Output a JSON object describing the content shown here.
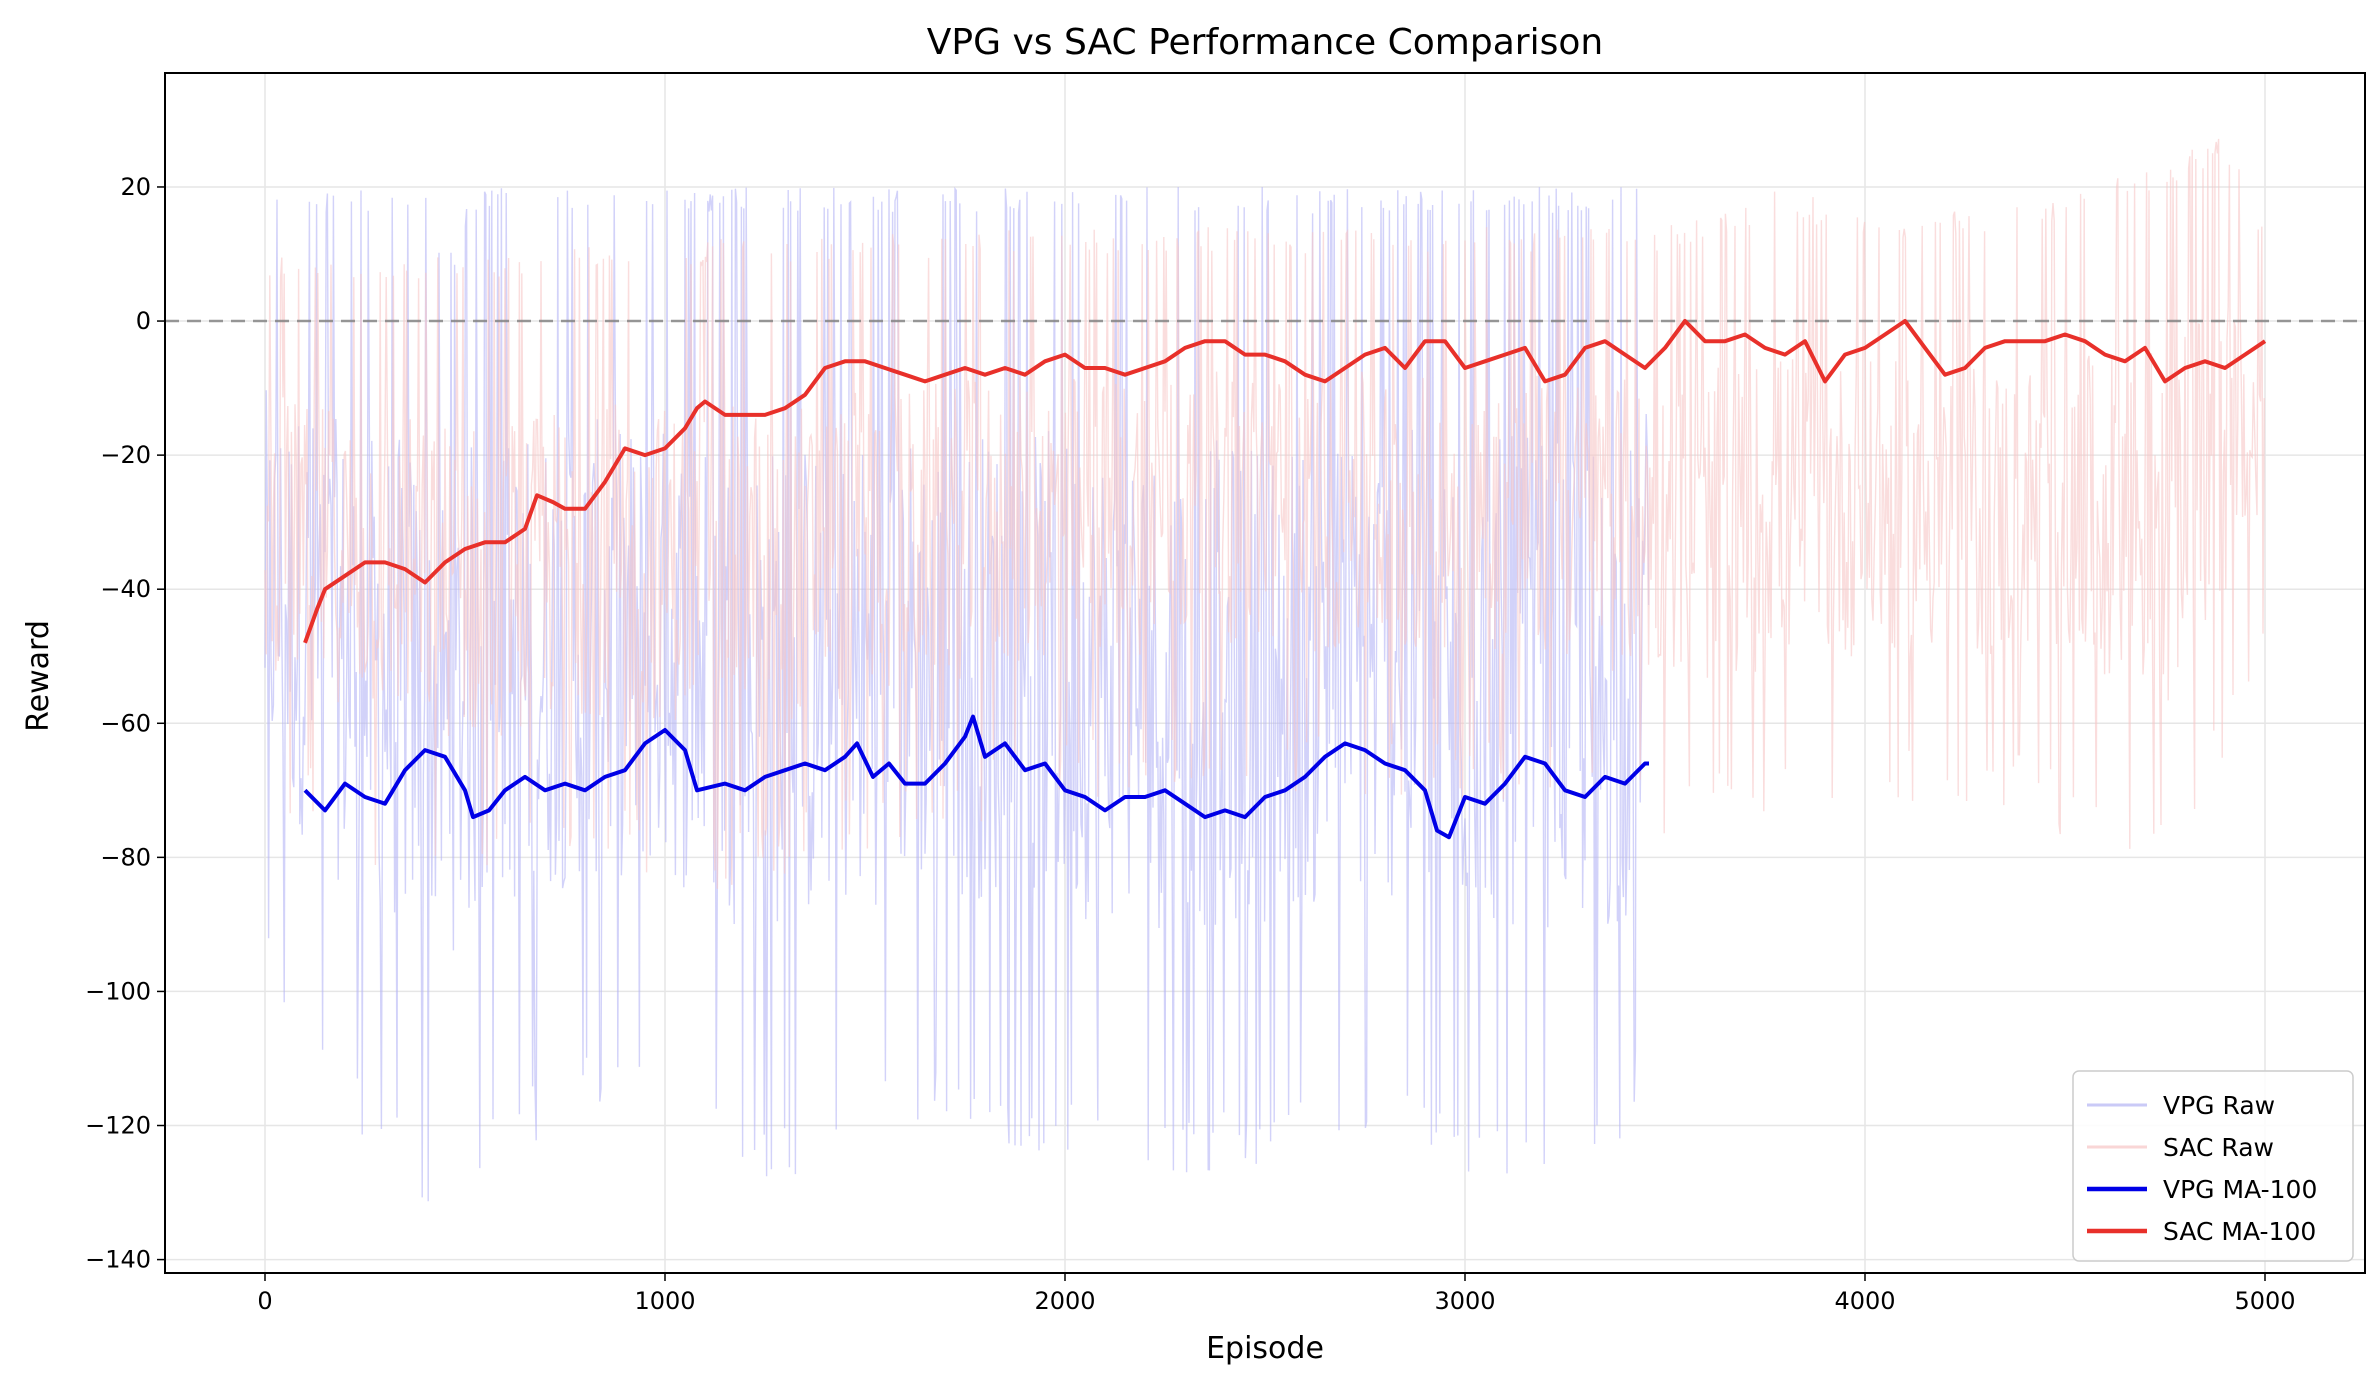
{
  "chart_data": {
    "type": "line",
    "title": "VPG vs SAC Performance Comparison",
    "xlabel": "Episode",
    "ylabel": "Reward",
    "xlim": [
      -250,
      5250
    ],
    "ylim": [
      -142,
      37
    ],
    "xticks": [
      0,
      1000,
      2000,
      3000,
      4000,
      5000
    ],
    "yticks": [
      -140,
      -120,
      -100,
      -80,
      -60,
      -40,
      -20,
      0,
      20
    ],
    "grid": true,
    "legend_position": "lower-right",
    "reference_line": {
      "y": 0,
      "style": "dashed",
      "color": "#808080"
    },
    "series": [
      {
        "name": "VPG Raw",
        "color": "#b4b4f5",
        "kind": "raw",
        "x_range": [
          0,
          3460
        ],
        "low_envelope": [
          [
            0,
            -100
          ],
          [
            100,
            -110
          ],
          [
            200,
            -120
          ],
          [
            400,
            -132
          ],
          [
            600,
            -125
          ],
          [
            800,
            -118
          ],
          [
            1000,
            -118
          ],
          [
            1200,
            -128
          ],
          [
            1400,
            -128
          ],
          [
            1600,
            -120
          ],
          [
            1800,
            -122
          ],
          [
            2000,
            -125
          ],
          [
            2200,
            -128
          ],
          [
            2400,
            -128
          ],
          [
            2600,
            -125
          ],
          [
            2800,
            -122
          ],
          [
            3000,
            -128
          ],
          [
            3200,
            -128
          ],
          [
            3400,
            -130
          ],
          [
            3460,
            -104
          ]
        ],
        "high_envelope": [
          [
            0,
            20
          ],
          [
            400,
            20
          ],
          [
            460,
            10
          ],
          [
            520,
            20
          ],
          [
            1000,
            20
          ],
          [
            1500,
            20
          ],
          [
            2000,
            20
          ],
          [
            2500,
            20
          ],
          [
            3000,
            20
          ],
          [
            3460,
            20
          ]
        ]
      },
      {
        "name": "SAC Raw",
        "color": "#f7c6c6",
        "kind": "raw",
        "x_range": [
          0,
          5000
        ],
        "low_envelope": [
          [
            0,
            -72
          ],
          [
            200,
            -80
          ],
          [
            500,
            -88
          ],
          [
            800,
            -82
          ],
          [
            1200,
            -86
          ],
          [
            1600,
            -78
          ],
          [
            2000,
            -72
          ],
          [
            2400,
            -70
          ],
          [
            2800,
            -72
          ],
          [
            3200,
            -72
          ],
          [
            3600,
            -78
          ],
          [
            4000,
            -72
          ],
          [
            4400,
            -74
          ],
          [
            4750,
            -85
          ],
          [
            5000,
            -52
          ]
        ],
        "high_envelope": [
          [
            0,
            10
          ],
          [
            500,
            10
          ],
          [
            1000,
            12
          ],
          [
            1500,
            13
          ],
          [
            2000,
            14
          ],
          [
            2500,
            14
          ],
          [
            3000,
            14
          ],
          [
            3500,
            14
          ],
          [
            3800,
            20
          ],
          [
            4000,
            16
          ],
          [
            4500,
            18
          ],
          [
            4900,
            28
          ],
          [
            5000,
            14
          ]
        ]
      },
      {
        "name": "VPG MA-100",
        "color": "#0000e6",
        "kind": "moving_average",
        "points": [
          [
            100,
            -70
          ],
          [
            150,
            -73
          ],
          [
            200,
            -69
          ],
          [
            250,
            -71
          ],
          [
            300,
            -72
          ],
          [
            350,
            -67
          ],
          [
            400,
            -64
          ],
          [
            450,
            -65
          ],
          [
            500,
            -70
          ],
          [
            520,
            -74
          ],
          [
            560,
            -73
          ],
          [
            600,
            -70
          ],
          [
            650,
            -68
          ],
          [
            700,
            -70
          ],
          [
            750,
            -69
          ],
          [
            800,
            -70
          ],
          [
            850,
            -68
          ],
          [
            900,
            -67
          ],
          [
            950,
            -63
          ],
          [
            1000,
            -61
          ],
          [
            1050,
            -64
          ],
          [
            1080,
            -70
          ],
          [
            1150,
            -69
          ],
          [
            1200,
            -70
          ],
          [
            1250,
            -68
          ],
          [
            1300,
            -67
          ],
          [
            1350,
            -66
          ],
          [
            1400,
            -67
          ],
          [
            1450,
            -65
          ],
          [
            1480,
            -63
          ],
          [
            1520,
            -68
          ],
          [
            1560,
            -66
          ],
          [
            1600,
            -69
          ],
          [
            1650,
            -69
          ],
          [
            1700,
            -66
          ],
          [
            1750,
            -62
          ],
          [
            1770,
            -59
          ],
          [
            1800,
            -65
          ],
          [
            1850,
            -63
          ],
          [
            1900,
            -67
          ],
          [
            1950,
            -66
          ],
          [
            2000,
            -70
          ],
          [
            2050,
            -71
          ],
          [
            2100,
            -73
          ],
          [
            2150,
            -71
          ],
          [
            2200,
            -71
          ],
          [
            2250,
            -70
          ],
          [
            2300,
            -72
          ],
          [
            2350,
            -74
          ],
          [
            2400,
            -73
          ],
          [
            2450,
            -74
          ],
          [
            2500,
            -71
          ],
          [
            2550,
            -70
          ],
          [
            2600,
            -68
          ],
          [
            2650,
            -65
          ],
          [
            2700,
            -63
          ],
          [
            2750,
            -64
          ],
          [
            2800,
            -66
          ],
          [
            2850,
            -67
          ],
          [
            2900,
            -70
          ],
          [
            2930,
            -76
          ],
          [
            2960,
            -77
          ],
          [
            3000,
            -71
          ],
          [
            3050,
            -72
          ],
          [
            3100,
            -69
          ],
          [
            3150,
            -65
          ],
          [
            3200,
            -66
          ],
          [
            3250,
            -70
          ],
          [
            3300,
            -71
          ],
          [
            3350,
            -68
          ],
          [
            3400,
            -69
          ],
          [
            3450,
            -66
          ],
          [
            3460,
            -66
          ]
        ]
      },
      {
        "name": "SAC MA-100",
        "color": "#e8302a",
        "kind": "moving_average",
        "points": [
          [
            100,
            -48
          ],
          [
            130,
            -43
          ],
          [
            150,
            -40
          ],
          [
            200,
            -38
          ],
          [
            250,
            -36
          ],
          [
            300,
            -36
          ],
          [
            350,
            -37
          ],
          [
            400,
            -39
          ],
          [
            450,
            -36
          ],
          [
            500,
            -34
          ],
          [
            550,
            -33
          ],
          [
            600,
            -33
          ],
          [
            650,
            -31
          ],
          [
            680,
            -26
          ],
          [
            720,
            -27
          ],
          [
            750,
            -28
          ],
          [
            800,
            -28
          ],
          [
            850,
            -24
          ],
          [
            900,
            -19
          ],
          [
            950,
            -20
          ],
          [
            1000,
            -19
          ],
          [
            1050,
            -16
          ],
          [
            1080,
            -13
          ],
          [
            1100,
            -12
          ],
          [
            1150,
            -14
          ],
          [
            1200,
            -14
          ],
          [
            1250,
            -14
          ],
          [
            1300,
            -13
          ],
          [
            1350,
            -11
          ],
          [
            1400,
            -7
          ],
          [
            1450,
            -6
          ],
          [
            1500,
            -6
          ],
          [
            1550,
            -7
          ],
          [
            1600,
            -8
          ],
          [
            1650,
            -9
          ],
          [
            1700,
            -8
          ],
          [
            1750,
            -7
          ],
          [
            1800,
            -8
          ],
          [
            1850,
            -7
          ],
          [
            1900,
            -8
          ],
          [
            1950,
            -6
          ],
          [
            2000,
            -5
          ],
          [
            2050,
            -7
          ],
          [
            2100,
            -7
          ],
          [
            2150,
            -8
          ],
          [
            2200,
            -7
          ],
          [
            2250,
            -6
          ],
          [
            2300,
            -4
          ],
          [
            2350,
            -3
          ],
          [
            2400,
            -3
          ],
          [
            2450,
            -5
          ],
          [
            2500,
            -5
          ],
          [
            2550,
            -6
          ],
          [
            2600,
            -8
          ],
          [
            2650,
            -9
          ],
          [
            2700,
            -7
          ],
          [
            2750,
            -5
          ],
          [
            2800,
            -4
          ],
          [
            2850,
            -7
          ],
          [
            2900,
            -3
          ],
          [
            2950,
            -3
          ],
          [
            3000,
            -7
          ],
          [
            3050,
            -6
          ],
          [
            3100,
            -5
          ],
          [
            3150,
            -4
          ],
          [
            3200,
            -9
          ],
          [
            3250,
            -8
          ],
          [
            3300,
            -4
          ],
          [
            3350,
            -3
          ],
          [
            3400,
            -5
          ],
          [
            3450,
            -7
          ],
          [
            3500,
            -4
          ],
          [
            3550,
            0
          ],
          [
            3600,
            -3
          ],
          [
            3650,
            -3
          ],
          [
            3700,
            -2
          ],
          [
            3750,
            -4
          ],
          [
            3800,
            -5
          ],
          [
            3850,
            -3
          ],
          [
            3900,
            -9
          ],
          [
            3950,
            -5
          ],
          [
            4000,
            -4
          ],
          [
            4050,
            -2
          ],
          [
            4100,
            0
          ],
          [
            4150,
            -4
          ],
          [
            4200,
            -8
          ],
          [
            4250,
            -7
          ],
          [
            4300,
            -4
          ],
          [
            4350,
            -3
          ],
          [
            4400,
            -3
          ],
          [
            4450,
            -3
          ],
          [
            4500,
            -2
          ],
          [
            4550,
            -3
          ],
          [
            4600,
            -5
          ],
          [
            4650,
            -6
          ],
          [
            4700,
            -4
          ],
          [
            4750,
            -9
          ],
          [
            4800,
            -7
          ],
          [
            4850,
            -6
          ],
          [
            4900,
            -7
          ],
          [
            4950,
            -5
          ],
          [
            5000,
            -3
          ]
        ]
      }
    ]
  }
}
